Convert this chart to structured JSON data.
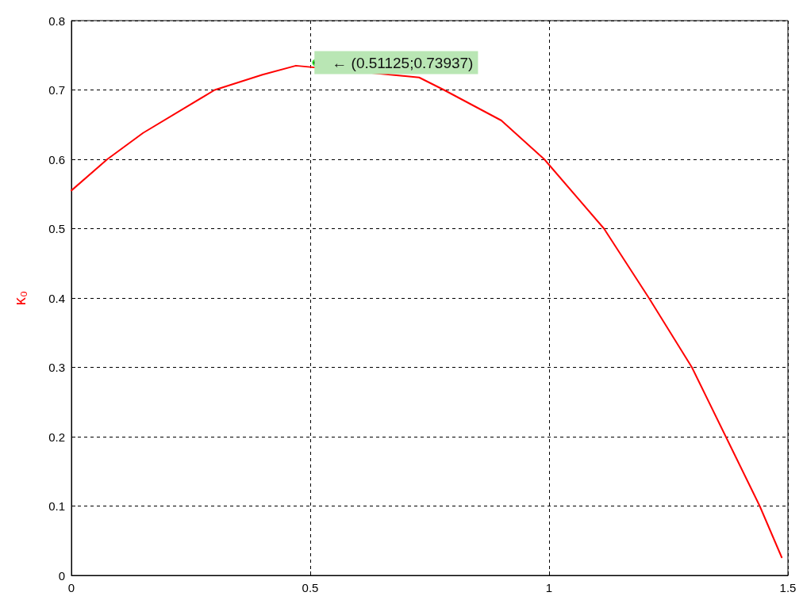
{
  "chart_data": {
    "type": "line",
    "ylabel": "κ₀",
    "x": [
      0,
      0.075,
      0.15,
      0.3,
      0.4,
      0.47,
      0.728,
      0.78,
      0.9,
      0.99,
      1.115,
      1.209,
      1.299,
      1.37,
      1.441,
      1.487
    ],
    "series": [
      {
        "color": "#ff0000",
        "values": [
          0.555,
          0.6,
          0.638,
          0.7,
          0.722,
          0.735,
          0.718,
          0.7,
          0.656,
          0.6,
          0.5,
          0.4,
          0.3,
          0.2,
          0.1,
          0.026
        ]
      }
    ],
    "xlim": [
      0,
      1.5
    ],
    "xticks": [
      0,
      0.5,
      1,
      1.5
    ],
    "ylim": [
      0,
      0.8
    ],
    "yticks": [
      0,
      0.1,
      0.2,
      0.3,
      0.4,
      0.5,
      0.6,
      0.7,
      0.8
    ],
    "annotations": [
      {
        "text": "← (0.51125;0.73937)",
        "x": 0.51125,
        "y": 0.73937
      }
    ],
    "grid": true,
    "marker": "none",
    "line_style": "solid"
  }
}
